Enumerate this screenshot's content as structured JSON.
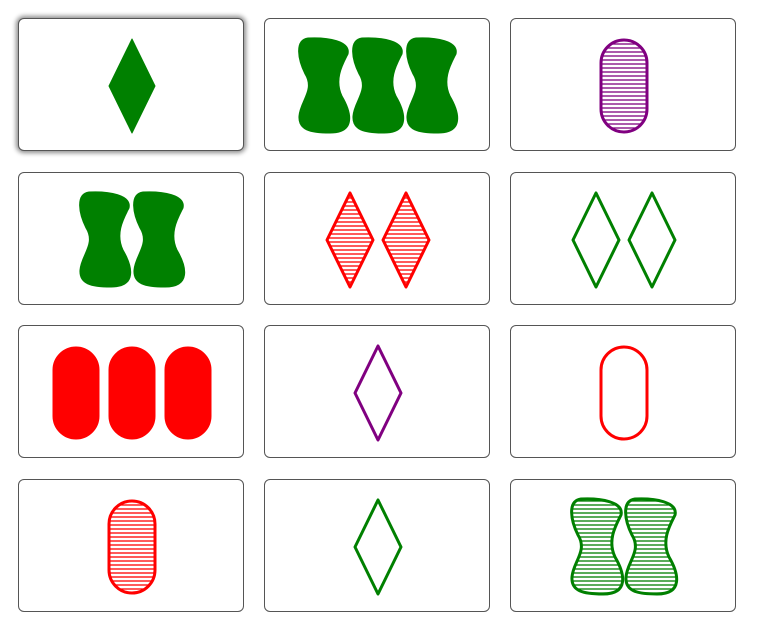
{
  "board": {
    "cards": [
      {
        "count": 1,
        "shape": "diamond",
        "fill": "solid",
        "color": "#008000",
        "selected": true
      },
      {
        "count": 3,
        "shape": "squiggle",
        "fill": "solid",
        "color": "#008000",
        "selected": false
      },
      {
        "count": 1,
        "shape": "oval",
        "fill": "striped",
        "color": "#800080",
        "selected": false
      },
      {
        "count": 2,
        "shape": "squiggle",
        "fill": "solid",
        "color": "#008000",
        "selected": false
      },
      {
        "count": 2,
        "shape": "diamond",
        "fill": "striped",
        "color": "#ff0000",
        "selected": false
      },
      {
        "count": 2,
        "shape": "diamond",
        "fill": "open",
        "color": "#008000",
        "selected": false
      },
      {
        "count": 3,
        "shape": "oval",
        "fill": "solid",
        "color": "#ff0000",
        "selected": false
      },
      {
        "count": 1,
        "shape": "diamond",
        "fill": "open",
        "color": "#800080",
        "selected": false
      },
      {
        "count": 1,
        "shape": "oval",
        "fill": "open",
        "color": "#ff0000",
        "selected": false
      },
      {
        "count": 1,
        "shape": "oval",
        "fill": "striped",
        "color": "#ff0000",
        "selected": false
      },
      {
        "count": 1,
        "shape": "diamond",
        "fill": "open",
        "color": "#008000",
        "selected": false
      },
      {
        "count": 2,
        "shape": "squiggle",
        "fill": "striped",
        "color": "#008000",
        "selected": false
      }
    ]
  }
}
